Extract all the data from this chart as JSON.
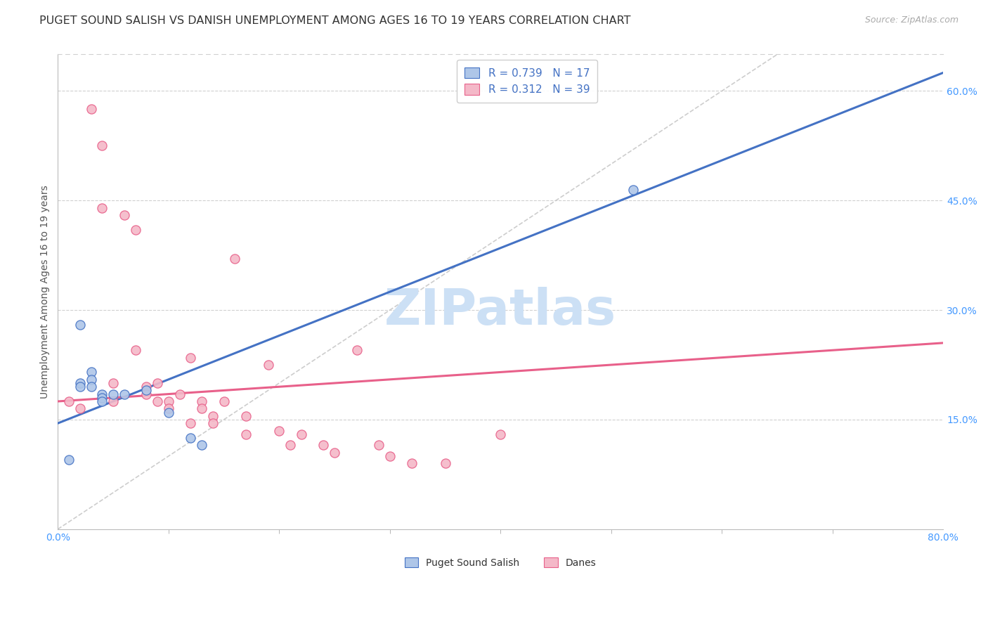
{
  "title": "PUGET SOUND SALISH VS DANISH UNEMPLOYMENT AMONG AGES 16 TO 19 YEARS CORRELATION CHART",
  "source": "Source: ZipAtlas.com",
  "ylabel": "Unemployment Among Ages 16 to 19 years",
  "xlim": [
    0.0,
    0.8
  ],
  "ylim": [
    0.0,
    0.65
  ],
  "xticks": [
    0.0,
    0.8
  ],
  "xticklabels": [
    "0.0%",
    "80.0%"
  ],
  "ytick_positions": [
    0.15,
    0.3,
    0.45,
    0.6
  ],
  "ytick_labels": [
    "15.0%",
    "30.0%",
    "45.0%",
    "60.0%"
  ],
  "blue_R": 0.739,
  "blue_N": 17,
  "pink_R": 0.312,
  "pink_N": 39,
  "blue_scatter_x": [
    0.01,
    0.02,
    0.02,
    0.03,
    0.03,
    0.03,
    0.04,
    0.04,
    0.04,
    0.05,
    0.06,
    0.08,
    0.1,
    0.12,
    0.13,
    0.52,
    0.02
  ],
  "blue_scatter_y": [
    0.095,
    0.2,
    0.195,
    0.215,
    0.205,
    0.195,
    0.185,
    0.18,
    0.175,
    0.185,
    0.185,
    0.19,
    0.16,
    0.125,
    0.115,
    0.465,
    0.28
  ],
  "pink_scatter_x": [
    0.01,
    0.02,
    0.03,
    0.04,
    0.04,
    0.05,
    0.05,
    0.06,
    0.07,
    0.07,
    0.08,
    0.08,
    0.09,
    0.09,
    0.1,
    0.1,
    0.11,
    0.12,
    0.12,
    0.13,
    0.13,
    0.14,
    0.14,
    0.15,
    0.16,
    0.17,
    0.17,
    0.19,
    0.2,
    0.21,
    0.22,
    0.24,
    0.25,
    0.27,
    0.29,
    0.3,
    0.32,
    0.35,
    0.4
  ],
  "pink_scatter_y": [
    0.175,
    0.165,
    0.575,
    0.525,
    0.44,
    0.2,
    0.175,
    0.43,
    0.41,
    0.245,
    0.195,
    0.185,
    0.2,
    0.175,
    0.175,
    0.165,
    0.185,
    0.235,
    0.145,
    0.175,
    0.165,
    0.155,
    0.145,
    0.175,
    0.37,
    0.155,
    0.13,
    0.225,
    0.135,
    0.115,
    0.13,
    0.115,
    0.105,
    0.245,
    0.115,
    0.1,
    0.09,
    0.09,
    0.13
  ],
  "blue_line_y_intercept": 0.145,
  "blue_line_slope": 0.6,
  "pink_line_y_intercept": 0.175,
  "pink_line_slope": 0.1,
  "diagonal_color": "#c8c8c8",
  "blue_color": "#aec6e8",
  "blue_line_color": "#4472c4",
  "pink_color": "#f4b8c8",
  "pink_line_color": "#e8608a",
  "background_color": "#ffffff",
  "grid_color": "#d0d0d0",
  "title_color": "#333333",
  "axis_label_color": "#555555",
  "tick_color": "#4499ff",
  "watermark_text": "ZIPatlas",
  "watermark_color": "#cce0f5",
  "watermark_fontsize": 52,
  "title_fontsize": 11.5,
  "source_fontsize": 9,
  "legend_fontsize": 11,
  "axis_label_fontsize": 10,
  "tick_fontsize": 10
}
